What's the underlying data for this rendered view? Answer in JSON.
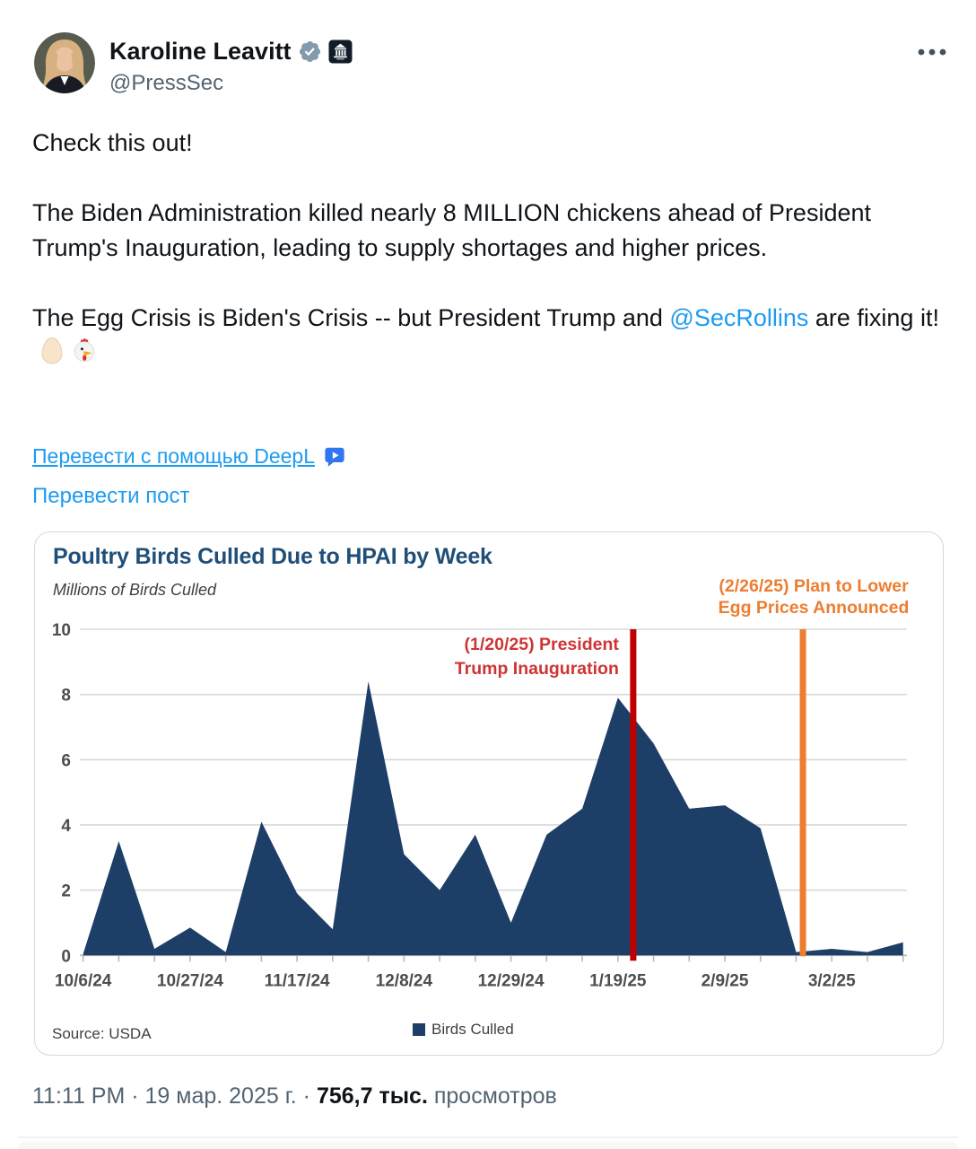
{
  "header": {
    "display_name": "Karoline Leavitt",
    "handle": "@PressSec",
    "badges": [
      "gray-verified-badge",
      "white-house-badge"
    ]
  },
  "tweet": {
    "paragraph1": "Check this out!",
    "paragraph2": "The Biden Administration killed nearly 8 MILLION chickens ahead of President Trump's Inauguration, leading to supply shortages and higher prices.",
    "paragraph3_before": "The Egg Crisis is Biden's Crisis -- but President Trump and ",
    "mention": "@SecRollins",
    "paragraph3_after": " are fixing it!",
    "emojis": [
      "egg",
      "chicken"
    ]
  },
  "translate": {
    "deepl_label": "Перевести с помощью DeepL",
    "post_label": "Перевести пост"
  },
  "chart_data": {
    "type": "area",
    "title": "Poultry Birds Culled Due to HPAI by Week",
    "subtitle": "Millions of Birds Culled",
    "legend": "Birds Culled",
    "source": "Source: USDA",
    "ylim": [
      0,
      10
    ],
    "y_ticks": [
      0,
      2,
      4,
      6,
      8,
      10
    ],
    "x": [
      "10/6/24",
      "10/13/24",
      "10/20/24",
      "10/27/24",
      "11/3/24",
      "11/10/24",
      "11/17/24",
      "11/24/24",
      "12/1/24",
      "12/8/24",
      "12/15/24",
      "12/22/24",
      "12/29/24",
      "1/5/25",
      "1/12/25",
      "1/19/25",
      "1/26/25",
      "2/2/25",
      "2/9/25",
      "2/16/25",
      "2/23/25",
      "3/2/25",
      "3/9/25",
      "3/16/25"
    ],
    "values": [
      0.05,
      3.5,
      0.2,
      0.85,
      0.1,
      4.1,
      1.9,
      0.8,
      8.4,
      3.1,
      2.0,
      3.7,
      1.0,
      3.7,
      4.5,
      7.9,
      6.5,
      4.5,
      4.6,
      3.9,
      0.1,
      0.2,
      0.1,
      0.4
    ],
    "x_tick_labels": [
      "10/6/24",
      "10/27/24",
      "11/17/24",
      "12/8/24",
      "12/29/24",
      "1/19/25",
      "2/9/25",
      "3/2/25"
    ],
    "x_tick_interval": 3,
    "area_color": "#1d3e66",
    "grid_color": "#d9d9d9",
    "axis_color": "#b7b7b7",
    "tick_label_color": "#4d4d4d",
    "annotations": [
      {
        "at_date": "1/20/25",
        "week_position": 15.43,
        "line1": "(1/20/25) President",
        "line2": "Trump Inauguration",
        "line_color": "#c00000",
        "text_color": "#cf3434",
        "label_pos": "inside"
      },
      {
        "at_date": "2/26/25",
        "week_position": 20.19,
        "line1": "(2/26/25) Plan to Lower",
        "line2": "Egg Prices Announced",
        "line_color": "#ed7d31",
        "text_color": "#ed7d31",
        "label_pos": "above"
      }
    ]
  },
  "footer": {
    "time_and_date": "11:11 PM · 19 мар. 2025 г. · ",
    "views_count": "756,7 тыс.",
    "views_label": " просмотров"
  },
  "colors": {
    "link_blue": "#1d9bf0",
    "text_primary": "#0f1419",
    "text_secondary": "#536471",
    "card_border": "#cfd9de",
    "title_blue": "#1f4e79"
  }
}
